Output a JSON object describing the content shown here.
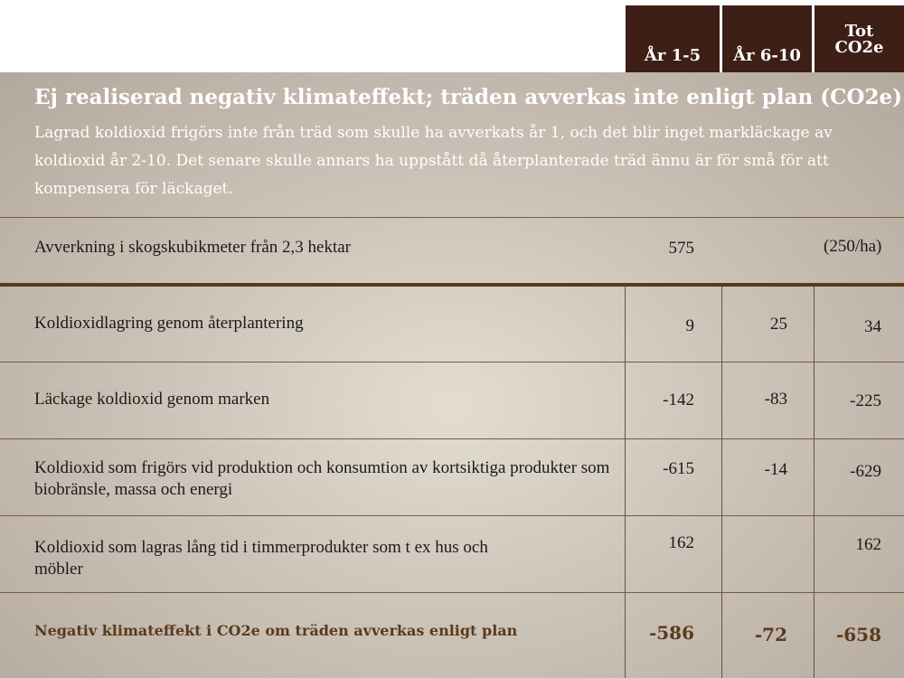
{
  "header": {
    "col1": "År 1-5",
    "col2": "År 6-10",
    "col3_line1": "Tot",
    "col3_line2": "CO2e"
  },
  "intro": {
    "title": "Ej realiserad negativ klimateffekt; träden avverkas inte enligt plan (CO2e)",
    "description": "Lagrad koldioxid frigörs inte från träd som skulle ha avverkats år 1, och det blir inget markläckage av koldioxid år 2-10. Det senare skulle annars ha uppstått då återplanterade träd ännu är för små för att kompensera för läckaget."
  },
  "harvest_row": {
    "label": "Avverkning i skogskubikmeter från 2,3 hektar",
    "value": "575",
    "note": "(250/ha)"
  },
  "rows": [
    {
      "label": "Koldioxidlagring genom återplantering",
      "y1_5": "9",
      "y6_10": "25",
      "total": "34"
    },
    {
      "label": "Läckage koldioxid genom marken",
      "y1_5": "-142",
      "y6_10": "-83",
      "total": "-225"
    },
    {
      "label": "Koldioxid som frigörs vid produktion och konsumtion av kortsiktiga produkter som biobränsle, massa och energi",
      "y1_5": "-615",
      "y6_10": "-14",
      "total": "-629"
    },
    {
      "label": "Koldioxid som lagras lång tid i timmerprodukter som t ex hus och möbler",
      "y1_5": "162",
      "y6_10": "",
      "total": "162"
    }
  ],
  "total_row": {
    "label": "Negativ klimateffekt i CO2e om träden avverkas enligt plan",
    "y1_5": "-586",
    "y6_10": "-72",
    "total": "-658"
  },
  "colors": {
    "header_bg": "#3d1f16",
    "accent": "#5a3a1a"
  }
}
